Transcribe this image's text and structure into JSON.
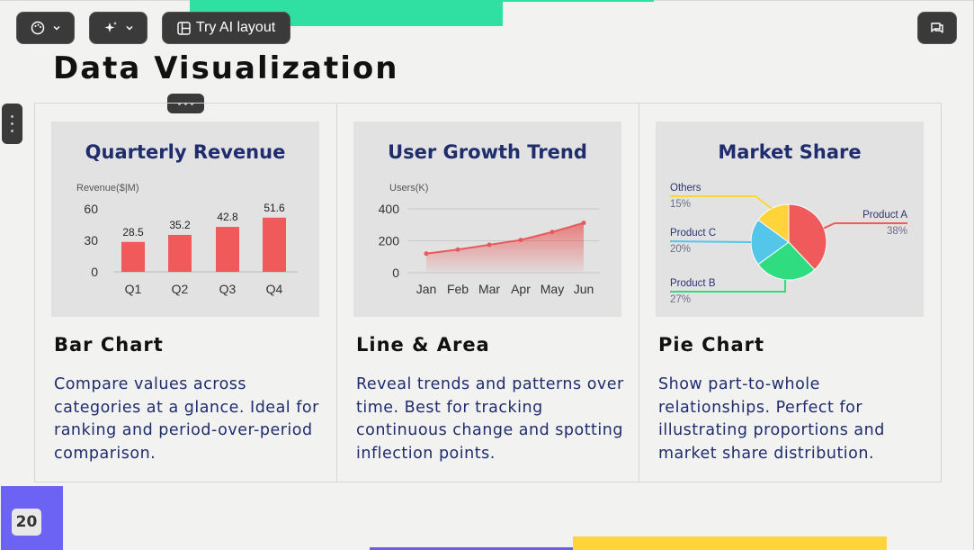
{
  "toolbar": {
    "palette_icon": "palette-icon",
    "magic_icon": "sparkle-icon",
    "layout_icon": "layout-icon",
    "ai_layout_label": "Try AI layout",
    "comment_icon": "comment-icon"
  },
  "page": {
    "title": "Data Visualization",
    "slide_number": "20"
  },
  "colors": {
    "accent_green": "#2fe0a2",
    "accent_yellow": "#ffd43a",
    "accent_purple": "#6c63f5",
    "bar_red": "#f05a5a",
    "title_navy": "#1f2c6e"
  },
  "cards": [
    {
      "chart_title": "Quarterly Revenue",
      "heading": "Bar Chart",
      "description": "Compare values across categories at a glance. Ideal for ranking and period-over-period comparison."
    },
    {
      "chart_title": "User Growth Trend",
      "heading": "Line & Area",
      "description": "Reveal trends and patterns over time. Best for tracking continuous change and spotting inflection points."
    },
    {
      "chart_title": "Market Share",
      "heading": "Pie Chart",
      "description": "Show part-to-whole relationships. Perfect for illustrating proportions and market share distribution."
    }
  ],
  "chart_data": [
    {
      "type": "bar",
      "title": "Quarterly Revenue",
      "ylabel": "Revenue($|M)",
      "categories": [
        "Q1",
        "Q2",
        "Q3",
        "Q4"
      ],
      "values": [
        28.5,
        35.2,
        42.8,
        51.6
      ],
      "value_labels": [
        "28.5",
        "35.2",
        "42.8",
        "51.6"
      ],
      "yticks": [
        "0",
        "30",
        "60"
      ],
      "ylim": [
        0,
        60
      ],
      "color": "#f05a5a"
    },
    {
      "type": "area",
      "title": "User Growth Trend",
      "ylabel": "Users(K)",
      "categories": [
        "Jan",
        "Feb",
        "Mar",
        "Apr",
        "May",
        "Jun"
      ],
      "values": [
        120,
        145,
        175,
        205,
        255,
        312
      ],
      "yticks": [
        "0",
        "200",
        "400"
      ],
      "ylim": [
        0,
        400
      ],
      "color": "#e85a5a"
    },
    {
      "type": "pie",
      "title": "Market Share",
      "slices": [
        {
          "name": "Product A",
          "value": 38,
          "label": "38%",
          "color": "#f05a5a"
        },
        {
          "name": "Product B",
          "value": 27,
          "label": "27%",
          "color": "#2fdc7f"
        },
        {
          "name": "Product C",
          "value": 20,
          "label": "20%",
          "color": "#53c6ea"
        },
        {
          "name": "Others",
          "value": 15,
          "label": "15%",
          "color": "#ffd43a"
        }
      ]
    }
  ]
}
